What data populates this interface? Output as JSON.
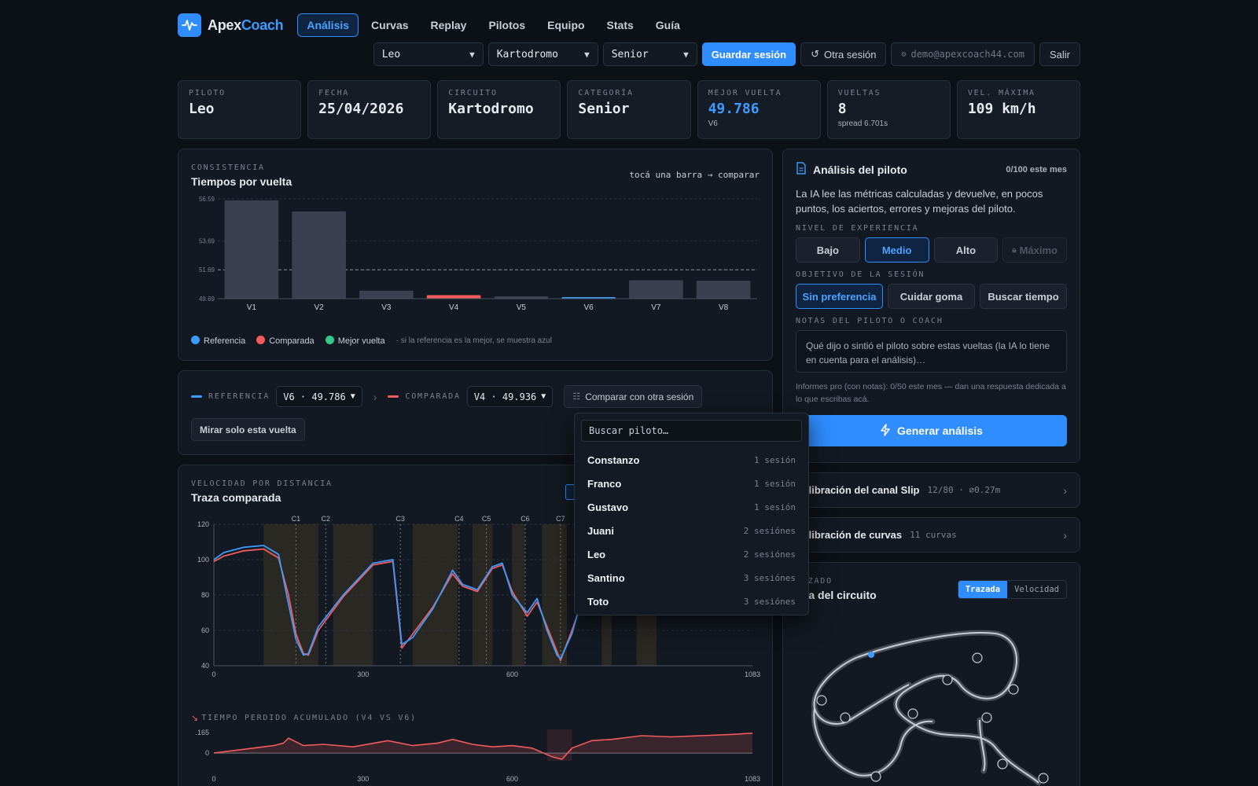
{
  "brand": {
    "part1": "Apex",
    "part2": "Coach"
  },
  "nav": [
    {
      "label": "Análisis",
      "active": true
    },
    {
      "label": "Curvas"
    },
    {
      "label": "Replay"
    },
    {
      "label": "Pilotos"
    },
    {
      "label": "Equipo"
    },
    {
      "label": "Stats"
    },
    {
      "label": "Guía"
    }
  ],
  "controls": {
    "pilot": "Leo",
    "circuit": "Kartodromo",
    "category": "Senior",
    "save": "Guardar sesión",
    "other": "Otra sesión",
    "email": "demo@apexcoach44.com",
    "logout": "Salir"
  },
  "stats": [
    {
      "label": "PILOTO",
      "value": "Leo"
    },
    {
      "label": "FECHA",
      "value": "25/04/2026"
    },
    {
      "label": "CIRCUITO",
      "value": "Kartodromo"
    },
    {
      "label": "CATEGORÍA",
      "value": "Senior"
    },
    {
      "label": "MEJOR VUELTA",
      "value": "49.786",
      "sub": "V6"
    },
    {
      "label": "VUELTAS",
      "value": "8",
      "sub": "spread 6.701s"
    },
    {
      "label": "VEL. MÁXIMA",
      "value": "109 km/h"
    }
  ],
  "consistency": {
    "tag": "CONSISTENCIA",
    "title": "Tiempos por vuelta",
    "hint": "tocá una barra → comparar",
    "legend": [
      "Referencia",
      "Comparada",
      "Mejor vuelta"
    ],
    "legend_note": "· si la referencia es la mejor, se muestra azul",
    "colors": {
      "ref": "#3d9bff",
      "cmp": "#f25c5c",
      "best": "#34c98a",
      "bar": "#3a4050"
    }
  },
  "compare": {
    "ref_label": "REFERENCIA",
    "ref_value": "V6 · 49.786",
    "cmp_label": "COMPARADA",
    "cmp_value": "V4 · 49.936",
    "other_session": "Comparar con otra sesión",
    "solo": "Mirar solo esta vuelta"
  },
  "dropdown": {
    "placeholder": "Buscar piloto…",
    "items": [
      {
        "name": "Constanzo",
        "meta": "1 sesión"
      },
      {
        "name": "Franco",
        "meta": "1 sesión"
      },
      {
        "name": "Gustavo",
        "meta": "1 sesión"
      },
      {
        "name": "Juani",
        "meta": "2 sesiónes"
      },
      {
        "name": "Leo",
        "meta": "2 sesiónes"
      },
      {
        "name": "Santino",
        "meta": "3 sesiónes"
      },
      {
        "name": "Toto",
        "meta": "3 sesiónes"
      }
    ]
  },
  "speed": {
    "tag": "VELOCIDAD POR DISTANCIA",
    "title": "Traza comparada",
    "lost_tag": "TIEMPO PERDIDO ACUMULADO (V4 VS V6)"
  },
  "ai": {
    "title": "Análisis del piloto",
    "count": "0/100 este mes",
    "desc": "La IA lee las métricas calculadas y devuelve, en pocos puntos, los aciertos, errores y mejoras del piloto.",
    "level_label": "NIVEL DE EXPERIENCIA",
    "levels": [
      "Bajo",
      "Medio",
      "Alto",
      "Máximo"
    ],
    "goal_label": "OBJETIVO DE LA SESIÓN",
    "goals": [
      "Sin preferencia",
      "Cuidar goma",
      "Buscar tiempo"
    ],
    "notes_label": "NOTAS DEL PILOTO O COACH",
    "notes_placeholder": "Qué dijo o sintió el piloto sobre estas vueltas (la IA lo tiene en cuenta para el análisis)…",
    "pro_note": "Informes pro (con notas): 0/50 este mes — dan una respuesta dedicada a lo que escribas acá.",
    "generate": "Generar análisis"
  },
  "calibration": [
    {
      "title": "Calibración del canal Slip",
      "meta": "12/80 · ⌀0.27m"
    },
    {
      "title": "Calibración de curvas",
      "meta": "11 curvas"
    }
  ],
  "map": {
    "tag": "ZAZADO",
    "title": "apa del circuito",
    "toggle": [
      "Trazada",
      "Velocidad"
    ]
  },
  "chart_data": [
    {
      "type": "bar",
      "title": "Tiempos por vuelta",
      "categories": [
        "V1",
        "V2",
        "V3",
        "V4",
        "V5",
        "V6",
        "V7",
        "V8"
      ],
      "values": [
        56.49,
        55.72,
        50.25,
        49.936,
        49.85,
        49.786,
        50.97,
        50.93
      ],
      "y_ticks": [
        "56.59",
        "53.69",
        "51.69",
        "49.69"
      ],
      "ylim": [
        49.69,
        56.59
      ],
      "highlight": {
        "V4": "comparada",
        "V6": "referencia"
      }
    },
    {
      "type": "line",
      "title": "Traza comparada",
      "x_ticks": [
        "0",
        "300",
        "600",
        "1083"
      ],
      "y_ticks": [
        "120",
        "100",
        "80",
        "60",
        "40"
      ],
      "xlim": [
        0,
        1083
      ],
      "ylim": [
        40,
        120
      ],
      "corners": [
        {
          "name": "C1",
          "x": 165
        },
        {
          "name": "C2",
          "x": 225
        },
        {
          "name": "C3",
          "x": 375
        },
        {
          "name": "C4",
          "x": 493
        },
        {
          "name": "C5",
          "x": 548
        },
        {
          "name": "C6",
          "x": 626
        },
        {
          "name": "C7",
          "x": 697
        }
      ],
      "series": [
        {
          "name": "V6",
          "color": "#3d9bff",
          "x": [
            0,
            20,
            60,
            100,
            130,
            150,
            165,
            180,
            190,
            210,
            260,
            320,
            360,
            378,
            400,
            440,
            480,
            500,
            530,
            560,
            580,
            600,
            630,
            650,
            670,
            690,
            697,
            720,
            740,
            780,
            820,
            860,
            900,
            950,
            1000,
            1083
          ],
          "y": [
            100,
            104,
            107,
            108,
            103,
            75,
            55,
            46,
            47,
            62,
            80,
            98,
            100,
            52,
            56,
            72,
            94,
            86,
            83,
            96,
            98,
            80,
            70,
            78,
            60,
            46,
            44,
            58,
            78,
            86,
            70,
            74,
            82,
            78,
            82,
            84
          ]
        },
        {
          "name": "V4",
          "color": "#f25c5c",
          "x": [
            0,
            20,
            60,
            100,
            130,
            150,
            165,
            180,
            190,
            210,
            260,
            320,
            360,
            378,
            400,
            440,
            480,
            500,
            530,
            560,
            580,
            600,
            630,
            650,
            670,
            690,
            697,
            720,
            740,
            780,
            820,
            860,
            900,
            950,
            1000,
            1083
          ],
          "y": [
            99,
            102,
            105,
            106,
            101,
            80,
            58,
            47,
            46,
            60,
            79,
            97,
            99,
            50,
            58,
            73,
            92,
            85,
            82,
            95,
            97,
            82,
            68,
            76,
            62,
            48,
            43,
            60,
            76,
            85,
            72,
            73,
            80,
            77,
            81,
            83
          ]
        }
      ]
    },
    {
      "type": "area",
      "title": "TIEMPO PERDIDO ACUMULADO (V4 VS V6)",
      "x_ticks": [
        "0",
        "300",
        "600",
        "1083"
      ],
      "y_ticks": [
        ".165",
        "0"
      ],
      "xlim": [
        0,
        1083
      ],
      "ylim": [
        -0.05,
        0.165
      ],
      "series": [
        {
          "name": "V4 vs V6",
          "color": "#f25c5c",
          "x": [
            0,
            60,
            120,
            140,
            150,
            180,
            220,
            280,
            350,
            400,
            450,
            480,
            520,
            560,
            600,
            640,
            680,
            700,
            720,
            760,
            800,
            860,
            920,
            980,
            1040,
            1083
          ],
          "y": [
            0,
            0.03,
            0.06,
            0.08,
            0.12,
            0.06,
            0.07,
            0.05,
            0.1,
            0.06,
            0.08,
            0.11,
            0.07,
            0.05,
            0.06,
            0.04,
            -0.03,
            -0.05,
            0.04,
            0.1,
            0.11,
            0.14,
            0.13,
            0.14,
            0.15,
            0.16
          ]
        }
      ]
    }
  ]
}
